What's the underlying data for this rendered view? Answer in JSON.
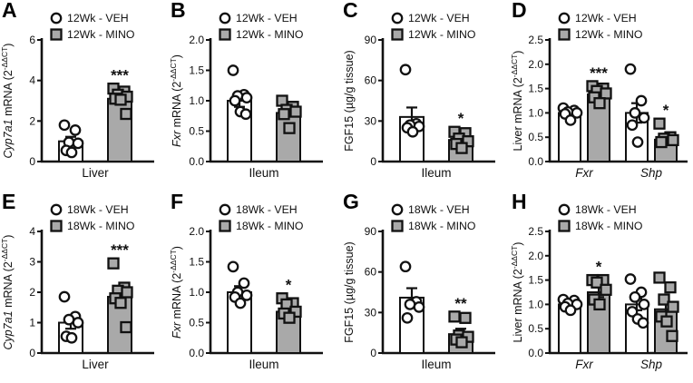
{
  "colors": {
    "ink": "#111111",
    "veh_fill": "#ffffff",
    "mino_fill": "#a9a9a9",
    "background": "#ffffff"
  },
  "chart_data": [
    {
      "type": "bar",
      "letter": "A",
      "legend": [
        {
          "marker": "circle",
          "label": "12Wk - VEH"
        },
        {
          "marker": "square",
          "label": "12Wk - MINO"
        }
      ],
      "ylabel": [
        {
          "t": "Cyp7a1",
          "i": 1
        },
        {
          "t": " mRNA (2"
        },
        {
          "t": "-ΔΔCT",
          "sup": 1
        },
        {
          "t": ")"
        }
      ],
      "ylim": [
        0,
        6
      ],
      "yticks": [
        "0",
        "2",
        "4",
        "6"
      ],
      "groups": [
        {
          "label": "Liver",
          "italic": 0,
          "bars": [
            {
              "series": "12Wk - VEH",
              "fill": "white",
              "marker": "circle",
              "mean": 1.0,
              "sem": 0.22,
              "sig": "",
              "points": [
                1.8,
                1.55,
                0.95,
                0.9,
                0.55,
                0.45
              ]
            },
            {
              "series": "12Wk - MINO",
              "fill": "gray",
              "marker": "square",
              "mean": 3.1,
              "sem": 0.12,
              "sig": "***",
              "points": [
                3.6,
                3.45,
                3.3,
                3.2,
                3.1,
                3.05,
                2.35
              ]
            }
          ]
        }
      ]
    },
    {
      "type": "bar",
      "letter": "B",
      "legend": [
        {
          "marker": "circle",
          "label": "12Wk - VEH"
        },
        {
          "marker": "square",
          "label": "12Wk - MINO"
        }
      ],
      "ylabel": [
        {
          "t": "Fxr",
          "i": 1
        },
        {
          "t": " mRNA (2"
        },
        {
          "t": "-ΔΔCT",
          "sup": 1
        },
        {
          "t": ")"
        }
      ],
      "ylim": [
        0,
        2
      ],
      "yticks": [
        "0.0",
        "0.5",
        "1.0",
        "1.5",
        "2.0"
      ],
      "groups": [
        {
          "label": "Ileum",
          "italic": 0,
          "bars": [
            {
              "series": "12Wk - VEH",
              "fill": "white",
              "marker": "circle",
              "mean": 1.0,
              "sem": 0.1,
              "sig": "",
              "points": [
                1.5,
                1.1,
                1.08,
                1.05,
                1.0,
                0.82,
                0.78
              ]
            },
            {
              "series": "12Wk - MINO",
              "fill": "gray",
              "marker": "square",
              "mean": 0.8,
              "sem": 0.06,
              "sig": "",
              "points": [
                1.0,
                0.9,
                0.85,
                0.82,
                0.78,
                0.55
              ]
            }
          ]
        }
      ]
    },
    {
      "type": "bar",
      "letter": "C",
      "legend": [
        {
          "marker": "circle",
          "label": "12Wk - VEH"
        },
        {
          "marker": "square",
          "label": "12Wk - MINO"
        }
      ],
      "ylabel": [
        {
          "t": "FGF15 (µg/g tissue)"
        }
      ],
      "ylim": [
        0,
        90
      ],
      "yticks": [
        "0",
        "30",
        "60",
        "90"
      ],
      "groups": [
        {
          "label": "Ileum",
          "italic": 0,
          "bars": [
            {
              "series": "12Wk - VEH",
              "fill": "white",
              "marker": "circle",
              "mean": 33,
              "sem": 7,
              "sig": "",
              "points": [
                68,
                28,
                27,
                26,
                25,
                22
              ]
            },
            {
              "series": "12Wk - MINO",
              "fill": "gray",
              "marker": "square",
              "mean": 16,
              "sem": 2.5,
              "sig": "*",
              "points": [
                22,
                21,
                17,
                15,
                13,
                10
              ]
            }
          ]
        }
      ]
    },
    {
      "type": "bar",
      "letter": "D",
      "legend": [
        {
          "marker": "circle",
          "label": "12Wk - VEH"
        },
        {
          "marker": "square",
          "label": "12Wk - MINO"
        }
      ],
      "ylabel": [
        {
          "t": "Liver mRNA (2"
        },
        {
          "t": "-ΔΔCT",
          "sup": 1
        },
        {
          "t": ")"
        }
      ],
      "ylim": [
        0,
        2.5
      ],
      "yticks": [
        "0.0",
        "0.5",
        "1.0",
        "1.5",
        "2.0",
        "2.5"
      ],
      "groups": [
        {
          "label": "Fxr",
          "italic": 1,
          "bars": [
            {
              "series": "12Wk - VEH",
              "fill": "white",
              "marker": "circle",
              "mean": 1.0,
              "sem": 0.04,
              "sig": "",
              "points": [
                1.1,
                1.05,
                1.02,
                1.0,
                0.98,
                0.85
              ]
            },
            {
              "series": "12Wk - MINO",
              "fill": "gray",
              "marker": "square",
              "mean": 1.38,
              "sem": 0.05,
              "sig": "***",
              "points": [
                1.55,
                1.5,
                1.45,
                1.4,
                1.32,
                1.2
              ]
            }
          ]
        },
        {
          "label": "Shp",
          "italic": 1,
          "bars": [
            {
              "series": "12Wk - VEH",
              "fill": "white",
              "marker": "circle",
              "mean": 1.0,
              "sem": 0.2,
              "sig": "",
              "points": [
                1.9,
                1.25,
                1.0,
                0.9,
                0.75,
                0.4
              ]
            },
            {
              "series": "12Wk - MINO",
              "fill": "gray",
              "marker": "square",
              "mean": 0.45,
              "sem": 0.05,
              "sig": "*",
              "points": [
                0.78,
                0.5,
                0.47,
                0.44,
                0.4
              ]
            }
          ]
        }
      ]
    },
    {
      "type": "bar",
      "letter": "E",
      "legend": [
        {
          "marker": "circle",
          "label": "18Wk - VEH"
        },
        {
          "marker": "square",
          "label": "18Wk - MINO"
        }
      ],
      "ylabel": [
        {
          "t": "Cyp7a1",
          "i": 1
        },
        {
          "t": " mRNA (2"
        },
        {
          "t": "-ΔΔCT",
          "sup": 1
        },
        {
          "t": ")"
        }
      ],
      "ylim": [
        0,
        4
      ],
      "yticks": [
        "0",
        "1",
        "2",
        "3",
        "4"
      ],
      "groups": [
        {
          "label": "Liver",
          "italic": 0,
          "bars": [
            {
              "series": "18Wk - VEH",
              "fill": "white",
              "marker": "circle",
              "mean": 1.0,
              "sem": 0.2,
              "sig": "",
              "points": [
                1.85,
                1.2,
                1.1,
                1.0,
                0.55,
                0.5
              ]
            },
            {
              "series": "18Wk - MINO",
              "fill": "gray",
              "marker": "square",
              "mean": 1.85,
              "sem": 0.15,
              "sig": "***",
              "points": [
                2.95,
                2.15,
                2.05,
                2.0,
                1.8,
                1.65,
                0.85
              ]
            }
          ]
        }
      ]
    },
    {
      "type": "bar",
      "letter": "F",
      "legend": [
        {
          "marker": "circle",
          "label": "18Wk - VEH"
        },
        {
          "marker": "square",
          "label": "18Wk - MINO"
        }
      ],
      "ylabel": [
        {
          "t": "Fxr",
          "i": 1
        },
        {
          "t": " mRNA (2"
        },
        {
          "t": "-ΔΔCT",
          "sup": 1
        },
        {
          "t": ")"
        }
      ],
      "ylim": [
        0,
        2
      ],
      "yticks": [
        "0.0",
        "0.5",
        "1.0",
        "1.5",
        "2.0"
      ],
      "groups": [
        {
          "label": "Ileum",
          "italic": 0,
          "bars": [
            {
              "series": "18Wk - VEH",
              "fill": "white",
              "marker": "circle",
              "mean": 1.0,
              "sem": 0.1,
              "sig": "",
              "points": [
                1.42,
                1.15,
                1.0,
                0.95,
                0.92,
                0.82
              ]
            },
            {
              "series": "18Wk - MINO",
              "fill": "gray",
              "marker": "square",
              "mean": 0.68,
              "sem": 0.05,
              "sig": "*",
              "points": [
                0.9,
                0.82,
                0.8,
                0.68,
                0.65,
                0.58
              ]
            }
          ]
        }
      ]
    },
    {
      "type": "bar",
      "letter": "G",
      "legend": [
        {
          "marker": "circle",
          "label": "18Wk - VEH"
        },
        {
          "marker": "square",
          "label": "18Wk - MINO"
        }
      ],
      "ylabel": [
        {
          "t": "FGF15 (µg/g tissue)"
        }
      ],
      "ylim": [
        0,
        90
      ],
      "yticks": [
        "0",
        "30",
        "60",
        "90"
      ],
      "groups": [
        {
          "label": "Ileum",
          "italic": 0,
          "bars": [
            {
              "series": "18Wk - VEH",
              "fill": "white",
              "marker": "circle",
              "mean": 41,
              "sem": 7,
              "sig": "",
              "points": [
                64,
                38,
                36,
                34,
                26
              ]
            },
            {
              "series": "18Wk - MINO",
              "fill": "gray",
              "marker": "square",
              "mean": 14,
              "sem": 4,
              "sig": "**",
              "points": [
                27,
                26,
                13,
                12,
                10,
                8
              ]
            }
          ]
        }
      ]
    },
    {
      "type": "bar",
      "letter": "H",
      "legend": [
        {
          "marker": "circle",
          "label": "18Wk - VEH"
        },
        {
          "marker": "square",
          "label": "18Wk - MINO"
        }
      ],
      "ylabel": [
        {
          "t": "Liver mRNA (2"
        },
        {
          "t": "-ΔΔCT",
          "sup": 1
        },
        {
          "t": ")"
        }
      ],
      "ylim": [
        0,
        2.5
      ],
      "yticks": [
        "0.0",
        "0.5",
        "1.0",
        "1.5",
        "2.0",
        "2.5"
      ],
      "groups": [
        {
          "label": "Fxr",
          "italic": 1,
          "bars": [
            {
              "series": "18Wk - VEH",
              "fill": "white",
              "marker": "circle",
              "mean": 1.0,
              "sem": 0.04,
              "sig": "",
              "points": [
                1.1,
                1.08,
                1.02,
                1.0,
                0.95,
                0.88
              ]
            },
            {
              "series": "18Wk - MINO",
              "fill": "gray",
              "marker": "square",
              "mean": 1.25,
              "sem": 0.1,
              "sig": "*",
              "points": [
                1.5,
                1.5,
                1.45,
                1.3,
                1.1,
                1.0
              ]
            }
          ]
        },
        {
          "label": "Shp",
          "italic": 1,
          "bars": [
            {
              "series": "18Wk - VEH",
              "fill": "white",
              "marker": "circle",
              "mean": 1.0,
              "sem": 0.12,
              "sig": "",
              "points": [
                1.52,
                1.25,
                1.15,
                1.0,
                0.85,
                0.7,
                0.62
              ]
            },
            {
              "series": "18Wk - MINO",
              "fill": "gray",
              "marker": "square",
              "mean": 0.9,
              "sem": 0.15,
              "sig": "",
              "points": [
                1.55,
                1.35,
                1.1,
                0.95,
                0.75,
                0.65,
                0.35
              ]
            }
          ]
        }
      ]
    }
  ]
}
